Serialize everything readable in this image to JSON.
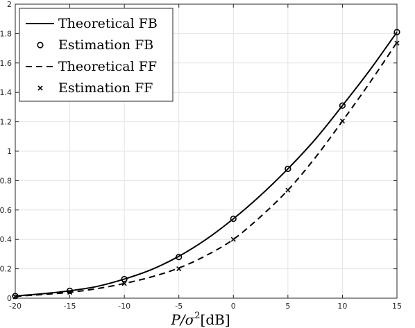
{
  "chart_data": {
    "type": "line",
    "xlabel_parts": [
      "P/σ",
      "2",
      "[dB]"
    ],
    "xlim": [
      -20,
      15
    ],
    "ylim": [
      0,
      2
    ],
    "xticks": [
      -20,
      -15,
      -10,
      -5,
      0,
      5,
      10,
      15
    ],
    "yticks": [
      0,
      0.2,
      0.4,
      0.6,
      0.8,
      1,
      1.2,
      1.4,
      1.6,
      1.8,
      2
    ],
    "grid": true,
    "legend_position": "top-left",
    "series": [
      {
        "name": "Theoretical FB",
        "style": "solid",
        "color": "#000000",
        "x": [
          -20,
          -17.5,
          -15,
          -12.5,
          -10,
          -7.5,
          -5,
          -2.5,
          0,
          2.5,
          5,
          7.5,
          10,
          12.5,
          15
        ],
        "values": [
          0.015,
          0.03,
          0.05,
          0.08,
          0.13,
          0.195,
          0.285,
          0.4,
          0.54,
          0.7,
          0.88,
          1.08,
          1.31,
          1.55,
          1.81
        ]
      },
      {
        "name": "Estimation FB",
        "style": "marker-circle",
        "color": "#000000",
        "x": [
          -20,
          -15,
          -10,
          -5,
          0,
          5,
          10,
          15
        ],
        "values": [
          0.015,
          0.05,
          0.13,
          0.28,
          0.54,
          0.88,
          1.31,
          1.81
        ]
      },
      {
        "name": "Theoretical FF",
        "style": "dashed",
        "color": "#000000",
        "x": [
          -20,
          -17.5,
          -15,
          -12.5,
          -10,
          -7.5,
          -5,
          -2.5,
          0,
          2.5,
          5,
          7.5,
          10,
          12.5,
          15
        ],
        "values": [
          0.012,
          0.025,
          0.04,
          0.065,
          0.1,
          0.145,
          0.205,
          0.29,
          0.4,
          0.555,
          0.735,
          0.955,
          1.205,
          1.465,
          1.74
        ]
      },
      {
        "name": "Estimation FF",
        "style": "marker-x",
        "color": "#000000",
        "x": [
          -20,
          -15,
          -10,
          -5,
          0,
          5,
          10,
          15
        ],
        "values": [
          0.01,
          0.04,
          0.1,
          0.2,
          0.4,
          0.735,
          1.205,
          1.735
        ]
      }
    ]
  }
}
